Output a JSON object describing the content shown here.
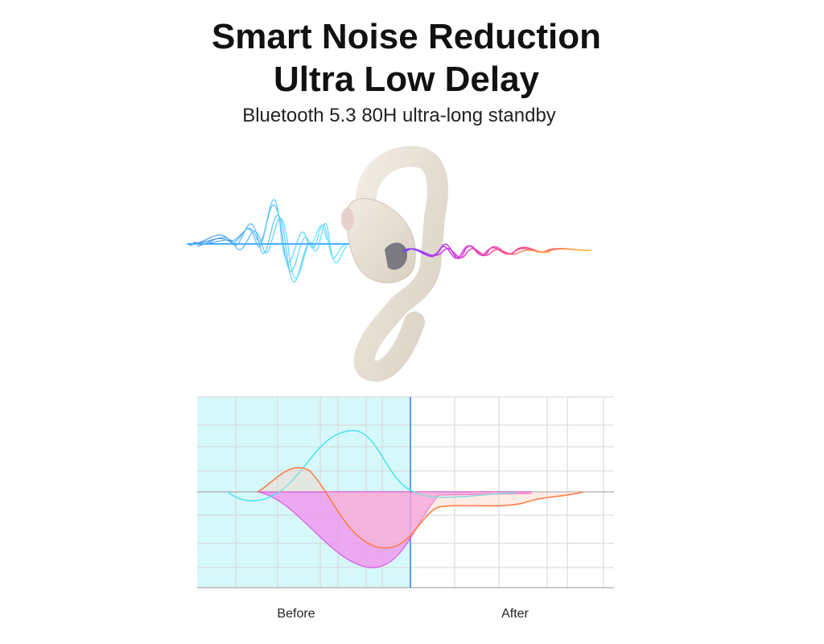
{
  "header": {
    "title": [
      "Smart Noise Reduction",
      "Ultra Low Delay"
    ],
    "subtitle": "Bluetooth 5.3 80H ultra-long standby"
  },
  "graph": {
    "labels": [
      "Before",
      "After"
    ]
  }
}
